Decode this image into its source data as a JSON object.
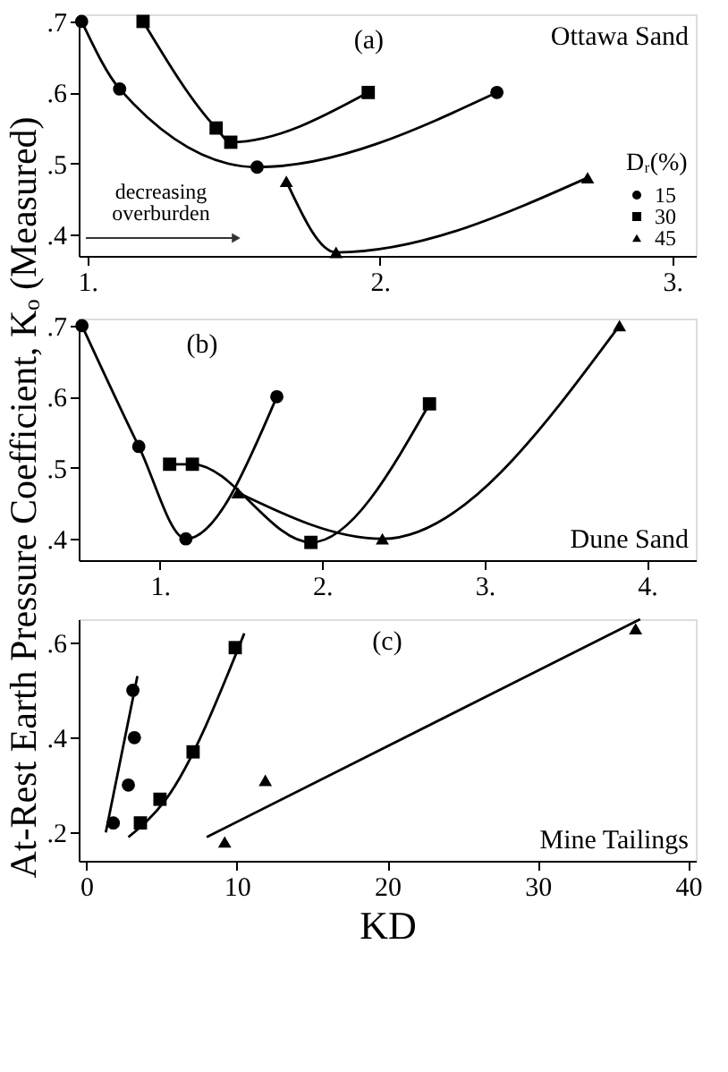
{
  "chart_data": [
    {
      "type": "line",
      "xlim": [
        0.97,
        3.08
      ],
      "xticks": [
        {
          "value": 1,
          "label": "1."
        },
        {
          "value": 2,
          "label": "2."
        },
        {
          "value": 3,
          "label": "3."
        }
      ],
      "ylim": [
        0.37,
        0.71
      ],
      "yticks": [
        {
          "value": 0.4,
          "label": ".4"
        },
        {
          "value": 0.5,
          "label": ".5"
        },
        {
          "value": 0.6,
          "label": ".6"
        },
        {
          "value": 0.7,
          "label": ".7"
        }
      ],
      "grid": false,
      "legend": "bottom right",
      "legend_title": "Dᵣ(%)",
      "annotations": [
        "(a)",
        "Ottawa Sand",
        "decreasing overburden"
      ],
      "series": [
        {
          "name": "15",
          "color": "#000000",
          "marker": "circle",
          "x": [
            0.98,
            1.11,
            1.58,
            2.4
          ],
          "values": [
            0.7,
            0.605,
            0.495,
            0.6
          ]
        },
        {
          "name": "30",
          "color": "#000000",
          "marker": "square",
          "x": [
            1.19,
            1.44,
            1.49,
            1.96
          ],
          "values": [
            0.7,
            0.55,
            0.53,
            0.6
          ]
        },
        {
          "name": "45",
          "color": "#000000",
          "marker": "triangle",
          "x": [
            1.68,
            1.85,
            2.71
          ],
          "values": [
            0.475,
            0.375,
            0.48
          ]
        }
      ]
    },
    {
      "type": "line",
      "xlim": [
        0.5,
        4.3
      ],
      "xticks": [
        {
          "value": 1,
          "label": "1."
        },
        {
          "value": 2,
          "label": "2."
        },
        {
          "value": 3,
          "label": "3."
        },
        {
          "value": 4,
          "label": "4."
        }
      ],
      "ylim": [
        0.37,
        0.71
      ],
      "yticks": [
        {
          "value": 0.4,
          "label": ".4"
        },
        {
          "value": 0.5,
          "label": ".5"
        },
        {
          "value": 0.6,
          "label": ".6"
        },
        {
          "value": 0.7,
          "label": ".7"
        }
      ],
      "grid": false,
      "ylabel": "At-Rest Earth Pressure Coefficient, Kₒ (Measured)",
      "annotations": [
        "(b)",
        "Dune Sand"
      ],
      "series": [
        {
          "color": "#000000",
          "marker": "circle",
          "x": [
            0.52,
            0.87,
            1.16,
            1.72
          ],
          "values": [
            0.7,
            0.53,
            0.4,
            0.6
          ]
        },
        {
          "color": "#000000",
          "marker": "square",
          "x": [
            1.06,
            1.2,
            1.93,
            2.66
          ],
          "values": [
            0.505,
            0.505,
            0.395,
            0.59
          ]
        },
        {
          "color": "#000000",
          "marker": "triangle",
          "x": [
            1.48,
            2.37,
            3.83
          ],
          "values": [
            0.465,
            0.4,
            0.7
          ]
        }
      ]
    },
    {
      "type": "scatter",
      "xlim": [
        -0.5,
        40.5
      ],
      "xticks": [
        0,
        10,
        20,
        30,
        40
      ],
      "ylim": [
        0.14,
        0.65
      ],
      "yticks": [
        {
          "value": 0.2,
          "label": ".2"
        },
        {
          "value": 0.4,
          "label": ".4"
        },
        {
          "value": 0.6,
          "label": ".6"
        }
      ],
      "grid": false,
      "xlabel": "KD",
      "annotations": [
        "(c)",
        "Mine Tailings"
      ],
      "series": [
        {
          "color": "#000000",
          "marker": "circle",
          "x": [
            1.8,
            2.8,
            3.2,
            3.1
          ],
          "values": [
            0.22,
            0.3,
            0.4,
            0.5
          ]
        },
        {
          "color": "#000000",
          "marker": "square",
          "x": [
            3.6,
            4.9,
            7.1,
            9.9
          ],
          "values": [
            0.22,
            0.27,
            0.37,
            0.59
          ]
        },
        {
          "color": "#000000",
          "marker": "triangle",
          "x": [
            9.2,
            11.9,
            36.5
          ],
          "values": [
            0.18,
            0.31,
            0.63
          ]
        },
        {
          "type": "line",
          "color": "#000000",
          "marker": "none",
          "x": [
            1.3,
            3.4
          ],
          "values": [
            0.2,
            0.53
          ]
        },
        {
          "type": "line",
          "color": "#000000",
          "marker": "none",
          "x": [
            2.8,
            5.3,
            10.5
          ],
          "values": [
            0.19,
            0.27,
            0.62
          ]
        },
        {
          "type": "line",
          "color": "#000000",
          "marker": "none",
          "x": [
            8,
            36.8
          ],
          "values": [
            0.19,
            0.65
          ]
        }
      ]
    }
  ]
}
